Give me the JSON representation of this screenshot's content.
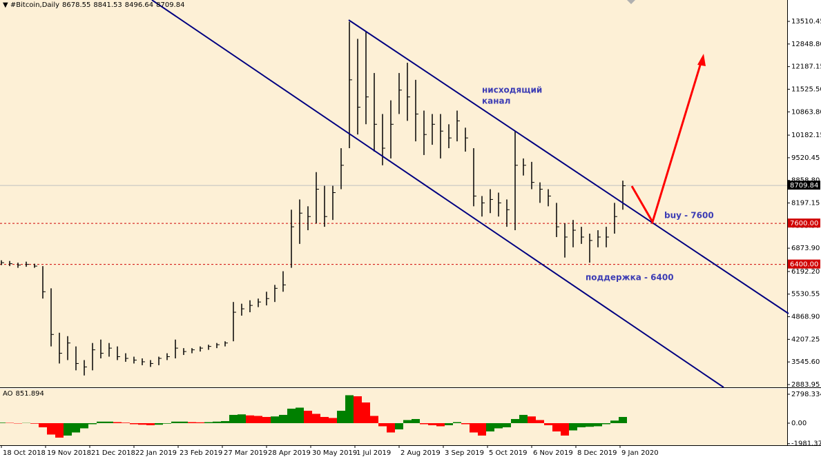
{
  "chart_data": [
    {
      "type": "ohlc",
      "title": "#Bitcoin,Daily",
      "header_values": [
        8678.55,
        8841.53,
        8496.64,
        8709.84
      ],
      "x": [
        0,
        6,
        12,
        18,
        24,
        30,
        36,
        42,
        48,
        54,
        60,
        66,
        72,
        78,
        84,
        90,
        96,
        102,
        108,
        114,
        120,
        126,
        132,
        138,
        144,
        150,
        156,
        162,
        168,
        174,
        180,
        186,
        192,
        198,
        204,
        210,
        216,
        222,
        228,
        234,
        240,
        246,
        252,
        258,
        264,
        270,
        276,
        282,
        288,
        294,
        300,
        306,
        312,
        318,
        324,
        330,
        336,
        342,
        348,
        354,
        360,
        366,
        372,
        378,
        384,
        390,
        396,
        402,
        408,
        414,
        420,
        426,
        432,
        438,
        444,
        450
      ],
      "high": [
        6520,
        6500,
        6450,
        6480,
        6420,
        6350,
        5700,
        4400,
        4300,
        4000,
        3600,
        4100,
        4200,
        4100,
        4000,
        3800,
        3700,
        3650,
        3600,
        3700,
        3800,
        4200,
        3950,
        3950,
        4000,
        4050,
        4100,
        4150,
        5300,
        5250,
        5350,
        5400,
        5600,
        5800,
        6200,
        8000,
        8300,
        8100,
        9100,
        8700,
        8700,
        9800,
        13500,
        13000,
        13200,
        12000,
        10800,
        11200,
        12000,
        12300,
        11800,
        10900,
        10800,
        10800,
        10500,
        10900,
        10400,
        9800,
        8400,
        8600,
        8500,
        8300,
        10300,
        9500,
        9400,
        8800,
        8600,
        8200,
        7600,
        7700,
        7500,
        7300,
        7400,
        7500,
        8200,
        8850
      ],
      "low": [
        6380,
        6350,
        6300,
        6330,
        6300,
        5400,
        4000,
        3500,
        3600,
        3300,
        3150,
        3300,
        3650,
        3700,
        3600,
        3550,
        3500,
        3450,
        3400,
        3450,
        3600,
        3650,
        3750,
        3800,
        3850,
        3900,
        3950,
        4000,
        4150,
        4900,
        5000,
        5150,
        5200,
        5300,
        5600,
        6300,
        7000,
        7400,
        7600,
        7500,
        7700,
        8600,
        9800,
        10200,
        10500,
        9700,
        9300,
        9500,
        10800,
        10600,
        10000,
        9600,
        9900,
        9500,
        9800,
        10000,
        9700,
        8100,
        7800,
        7900,
        7800,
        7500,
        7400,
        9000,
        8600,
        8200,
        8100,
        7200,
        6600,
        6900,
        7000,
        6450,
        6900,
        6900,
        7300,
        8000
      ],
      "close": [
        6450,
        6420,
        6380,
        6400,
        6350,
        5600,
        4350,
        3800,
        4100,
        3500,
        3400,
        3900,
        3800,
        3950,
        3700,
        3650,
        3600,
        3550,
        3500,
        3650,
        3700,
        3950,
        3850,
        3900,
        3950,
        4000,
        4050,
        4100,
        5000,
        5100,
        5200,
        5300,
        5400,
        5700,
        5800,
        7500,
        7900,
        7800,
        8600,
        7800,
        8500,
        9300,
        11800,
        11000,
        11300,
        10500,
        9800,
        10500,
        11500,
        11300,
        10800,
        10200,
        10500,
        10300,
        10100,
        10600,
        10100,
        8400,
        8200,
        8300,
        8200,
        8000,
        9300,
        9300,
        8800,
        8600,
        8400,
        7500,
        7200,
        7400,
        7200,
        7100,
        7200,
        7200,
        7800,
        8700
      ],
      "color": "#000000",
      "xlim": [
        -1,
        569
      ],
      "xticks": [
        {
          "value": 0,
          "label": "18 Oct 2018"
        },
        {
          "value": 32,
          "label": "19 Nov 2018"
        },
        {
          "value": 64,
          "label": "21 Dec 2018"
        },
        {
          "value": 96,
          "label": "22 Jan 2019"
        },
        {
          "value": 128,
          "label": "23 Feb 2019"
        },
        {
          "value": 160,
          "label": "27 Mar 2019"
        },
        {
          "value": 192,
          "label": "28 Apr 2019"
        },
        {
          "value": 224,
          "label": "30 May 2019"
        },
        {
          "value": 256,
          "label": "1 Jul 2019"
        },
        {
          "value": 288,
          "label": "2 Aug 2019"
        },
        {
          "value": 320,
          "label": "3 Sep 2019"
        },
        {
          "value": 352,
          "label": "5 Oct 2019"
        },
        {
          "value": 384,
          "label": "6 Nov 2019"
        },
        {
          "value": 416,
          "label": "8 Dec 2019"
        },
        {
          "value": 448,
          "label": "9 Jan 2020"
        }
      ],
      "ylim": [
        2803,
        14136
      ],
      "yticks": [
        13510.45,
        {
          "value": 12848.8,
          "label": "12848.80"
        },
        12187.15,
        {
          "value": 11525.5,
          "label": "11525.50"
        },
        {
          "value": 10863.8,
          "label": "10863.80"
        },
        10182.15,
        9520.45,
        {
          "value": 8858.8,
          "label": "8858.80"
        },
        8197.15,
        {
          "value": 7535.5,
          "label": "7535.50"
        },
        {
          "value": 6873.9,
          "label": "6873.90"
        },
        {
          "value": 6192.2,
          "label": "6192.20"
        },
        5530.55,
        {
          "value": 4868.9,
          "label": "4868.90"
        },
        4207.25,
        {
          "value": 3545.6,
          "label": "3545.60"
        },
        2883.95
      ],
      "last_price": 8709.84,
      "levels": [
        {
          "value": 7600,
          "label": "7600.00"
        },
        {
          "value": 6400,
          "label": "6400.00"
        }
      ],
      "level_color": "#d00000",
      "annotations": {
        "channel": [
          "нисходящий",
          "канал"
        ],
        "buy": "buy - 7600",
        "support": "поддержка - 6400"
      }
    },
    {
      "type": "histogram",
      "title": "AO",
      "last_value": 851.894,
      "x": [
        0,
        6,
        12,
        18,
        24,
        30,
        36,
        42,
        48,
        54,
        60,
        66,
        72,
        78,
        84,
        90,
        96,
        102,
        108,
        114,
        120,
        126,
        132,
        138,
        144,
        150,
        156,
        162,
        168,
        174,
        180,
        186,
        192,
        198,
        204,
        210,
        216,
        222,
        228,
        234,
        240,
        246,
        252,
        258,
        264,
        270,
        276,
        282,
        288,
        294,
        300,
        306,
        312,
        318,
        324,
        330,
        336,
        342,
        348,
        354,
        360,
        366,
        372,
        378,
        384,
        390,
        396,
        402,
        408,
        414,
        420,
        426,
        432,
        438,
        444,
        450
      ],
      "values": [
        50,
        30,
        -30,
        20,
        -50,
        -400,
        -1100,
        -1400,
        -1200,
        -900,
        -500,
        -100,
        150,
        150,
        100,
        50,
        -100,
        -150,
        -200,
        -150,
        -50,
        150,
        150,
        100,
        80,
        100,
        150,
        200,
        800,
        850,
        750,
        700,
        600,
        650,
        800,
        1400,
        1500,
        1200,
        900,
        600,
        500,
        1200,
        2700,
        2600,
        2000,
        700,
        -300,
        -900,
        -600,
        300,
        400,
        -100,
        -200,
        -300,
        -200,
        100,
        -100,
        -900,
        -1200,
        -800,
        -500,
        -400,
        400,
        800,
        650,
        300,
        -200,
        -800,
        -1200,
        -700,
        -400,
        -350,
        -300,
        -100,
        250,
        600
      ],
      "up_color": "#008000",
      "down_color": "#ff0000",
      "xlim": [
        -1,
        569
      ],
      "ylim": [
        -2132,
        3331
      ],
      "yticks": [
        2798.334,
        {
          "value": 0,
          "label": "0.00"
        },
        -1981.376
      ]
    }
  ]
}
